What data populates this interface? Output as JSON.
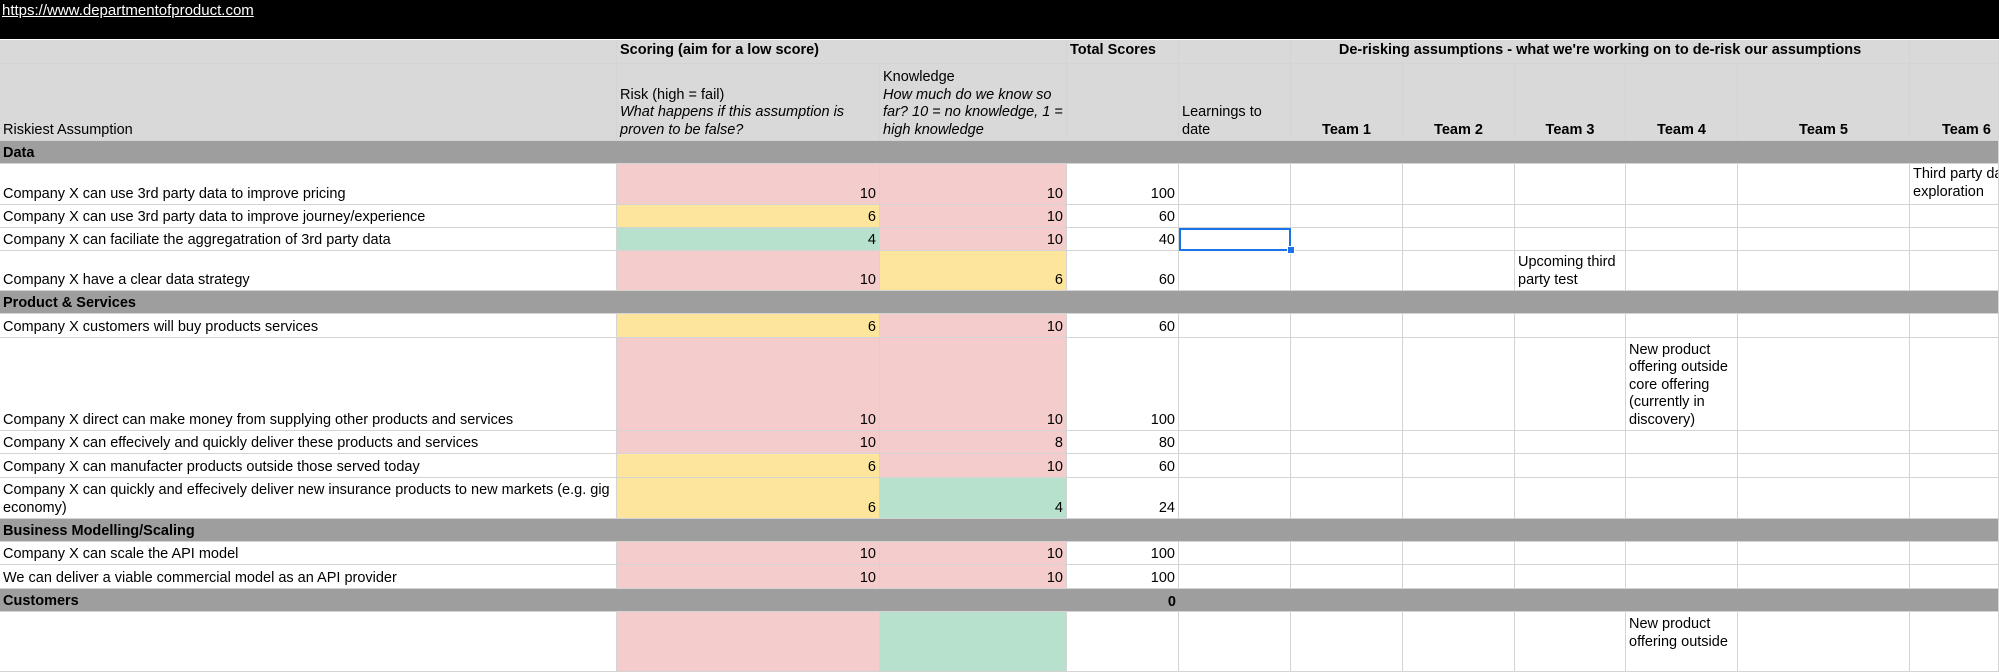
{
  "link": "https://www.departmentofproduct.com",
  "header_row1": {
    "scoring": "Scoring (aim for a low score)",
    "total_scores": "Total Scores",
    "derisking": "De-risking assumptions - what we're working on to de-risk our assumptions"
  },
  "header_row2": {
    "riskiest_assumption": "Riskiest Assumption",
    "risk_title": "Risk (high = fail)",
    "risk_sub": "What happens if this assumption is proven to be false?",
    "knowledge_title": "Knowledge",
    "knowledge_sub": "How much do we know so far? 10 = no knowledge, 1 = high knowledge",
    "learnings": "Learnings to date",
    "teams": [
      "Team 1",
      "Team 2",
      "Team 3",
      "Team 4",
      "Team 5",
      "Team 6"
    ]
  },
  "sections": {
    "data": "Data",
    "product": "Product & Services",
    "business": "Business Modelling/Scaling",
    "customers": "Customers",
    "customers_total": "0"
  },
  "rows": [
    {
      "assumption": "Company X can use 3rd party data to improve pricing",
      "risk": "10",
      "knowledge": "10",
      "total": "100",
      "team6": "Third party data exploration"
    },
    {
      "assumption": "Company X can use 3rd party data to improve journey/experience",
      "risk": "6",
      "knowledge": "10",
      "total": "60"
    },
    {
      "assumption": "Company X can faciliate the aggregatration of 3rd party data",
      "risk": "4",
      "knowledge": "10",
      "total": "40"
    },
    {
      "assumption": "Company X have a clear data strategy",
      "risk": "10",
      "knowledge": "6",
      "total": "60",
      "team3": "Upcoming third party test"
    },
    {
      "assumption": "Company X customers will buy products services",
      "risk": "6",
      "knowledge": "10",
      "total": "60"
    },
    {
      "assumption": "Company X direct can make money from supplying other products and services",
      "risk": "10",
      "knowledge": "10",
      "total": "100",
      "team4": "New product offering outside core offering (currently in discovery)"
    },
    {
      "assumption": "Company X can effecively and quickly deliver these products and services",
      "risk": "10",
      "knowledge": "8",
      "total": "80"
    },
    {
      "assumption": "Company X can manufacter products outside those served today",
      "risk": "6",
      "knowledge": "10",
      "total": "60"
    },
    {
      "assumption": "Company X can quickly and effecively deliver new insurance products to new markets (e.g. gig economy)",
      "risk": "6",
      "knowledge": "4",
      "total": "24"
    },
    {
      "assumption": "Company X can scale the API model",
      "risk": "10",
      "knowledge": "10",
      "total": "100"
    },
    {
      "assumption": "We can deliver a viable commercial model as an API provider",
      "risk": "10",
      "knowledge": "10",
      "total": "100"
    },
    {
      "team4": "New product offering outside"
    }
  ],
  "colors": {
    "red": "#f4cccc",
    "yellow": "#fde59c",
    "green": "#b7e1cd",
    "selection": "#1a73e8"
  }
}
